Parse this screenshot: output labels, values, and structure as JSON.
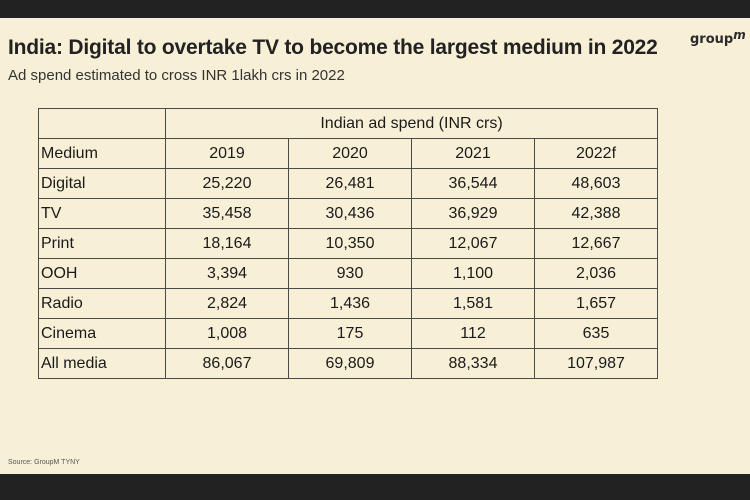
{
  "title": "India: Digital to overtake TV to become the largest medium in 2022",
  "subtitle": "Ad spend estimated to cross INR 1lakh crs in 2022",
  "logo": {
    "text": "group",
    "superscript": "m"
  },
  "table": {
    "group_header": "Indian ad spend (INR crs)",
    "columns": [
      "Medium",
      "2019",
      "2020",
      "2021",
      "2022f"
    ],
    "rows": [
      {
        "medium": "Digital",
        "values": [
          "25,220",
          "26,481",
          "36,544",
          "48,603"
        ]
      },
      {
        "medium": "TV",
        "values": [
          "35,458",
          "30,436",
          "36,929",
          "42,388"
        ]
      },
      {
        "medium": "Print",
        "values": [
          "18,164",
          "10,350",
          "12,067",
          "12,667"
        ]
      },
      {
        "medium": "OOH",
        "values": [
          "3,394",
          "930",
          "1,100",
          "2,036"
        ]
      },
      {
        "medium": "Radio",
        "values": [
          "2,824",
          "1,436",
          "1,581",
          "1,657"
        ]
      },
      {
        "medium": "Cinema",
        "values": [
          "1,008",
          "175",
          "112",
          "635"
        ]
      },
      {
        "medium": "All media",
        "values": [
          "86,067",
          "69,809",
          "88,334",
          "107,987"
        ]
      }
    ]
  },
  "source": "Source: GroupM TYNY",
  "colors": {
    "background": "#f7efd6",
    "frame": "#222222",
    "border": "#4a4a4a"
  }
}
